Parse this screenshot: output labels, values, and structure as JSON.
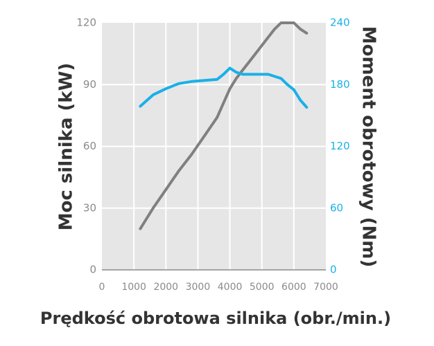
{
  "chart_data": {
    "type": "line",
    "xlabel": "Prędkość obrotowa silnika (obr./min.)",
    "ylabel_left": "Moc silnika (kW)",
    "ylabel_right": "Moment obrotowy (Nm)",
    "xlim": [
      0,
      7000
    ],
    "ylim_left": [
      0,
      120
    ],
    "ylim_right": [
      0,
      240
    ],
    "x_ticks": [
      "0",
      "1000",
      "2000",
      "3000",
      "4000",
      "5000",
      "6000",
      "7000"
    ],
    "y_left_ticks": [
      "0",
      "30",
      "60",
      "90",
      "120"
    ],
    "y_right_ticks": [
      "0",
      "60",
      "120",
      "180",
      "240"
    ],
    "grid": true,
    "series": [
      {
        "axis": "left",
        "color": "#808080",
        "x": [
          1200,
          1600,
          2000,
          2400,
          2800,
          3200,
          3600,
          3800,
          4000,
          4200,
          4400,
          4600,
          4800,
          5000,
          5200,
          5400,
          5600,
          5800,
          6000,
          6200,
          6400
        ],
        "values": [
          20,
          30,
          39,
          48,
          56,
          65,
          74,
          81,
          88,
          93,
          97,
          101,
          105,
          109,
          113,
          117,
          120,
          120,
          120,
          117,
          115
        ]
      },
      {
        "axis": "right",
        "color": "#1ab0e8",
        "x": [
          1200,
          1600,
          2000,
          2400,
          2800,
          3200,
          3600,
          3800,
          4000,
          4200,
          4400,
          4800,
          5200,
          5400,
          5600,
          5800,
          6000,
          6200,
          6400
        ],
        "values": [
          159,
          170,
          176,
          181,
          183,
          184,
          185,
          190,
          196,
          192,
          190,
          190,
          190,
          188,
          186,
          180,
          175,
          165,
          158
        ]
      }
    ]
  }
}
